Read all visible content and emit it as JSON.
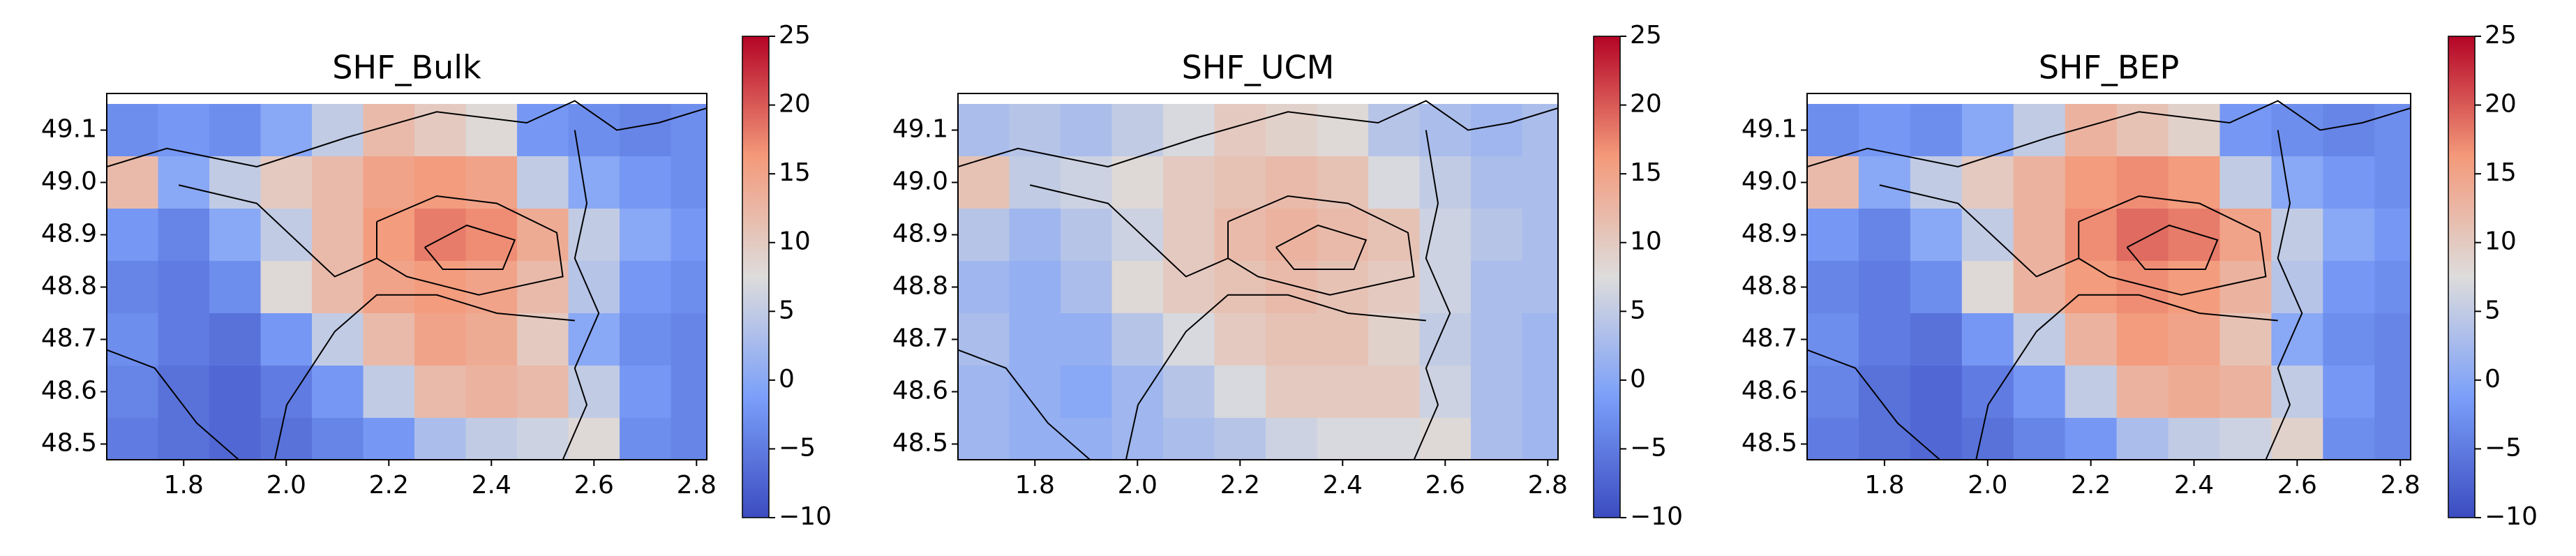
{
  "chart_data": [
    {
      "type": "heatmap",
      "title": "SHF_Bulk",
      "colormap": "coolwarm",
      "clim": [
        -10,
        25
      ],
      "cticks": [
        {
          "value": -10,
          "label": "−10"
        },
        {
          "value": -5,
          "label": "−5"
        },
        0,
        5,
        10,
        15,
        20,
        25
      ],
      "x": [
        1.7,
        1.8,
        1.9,
        2.0,
        2.1,
        2.2,
        2.3,
        2.4,
        2.5,
        2.6,
        2.7,
        2.8
      ],
      "y": [
        49.1,
        49.0,
        48.9,
        48.8,
        48.7,
        48.6,
        48.5
      ],
      "values": [
        [
          -3,
          -2,
          -3,
          0,
          5,
          12,
          10,
          8,
          -2,
          -3,
          -4,
          -3
        ],
        [
          12,
          0,
          5,
          10,
          12,
          15,
          16,
          15,
          5,
          0,
          -2,
          -3
        ],
        [
          -2,
          -4,
          0,
          5,
          12,
          16,
          18,
          17,
          14,
          5,
          0,
          -2
        ],
        [
          -4,
          -5,
          -3,
          8,
          12,
          15,
          16,
          15,
          12,
          4,
          -2,
          -3
        ],
        [
          -3,
          -5,
          -6,
          -2,
          5,
          12,
          15,
          14,
          10,
          0,
          -3,
          -4
        ],
        [
          -4,
          -6,
          -7,
          -5,
          -2,
          5,
          12,
          13,
          12,
          5,
          -2,
          -4
        ],
        [
          -5,
          -6,
          -7,
          -6,
          -4,
          -2,
          3,
          5,
          6,
          8,
          -3,
          -4
        ]
      ],
      "xlim": [
        1.65,
        2.82
      ],
      "ylim": [
        48.47,
        49.17
      ],
      "xticks": [
        1.8,
        {
          "value": 2,
          "label": "2.0"
        },
        2.2,
        2.4,
        2.6,
        2.8
      ],
      "yticks": [
        48.5,
        48.6,
        48.7,
        48.8,
        48.9,
        {
          "value": 49,
          "label": "49.0"
        },
        49.1
      ]
    },
    {
      "type": "heatmap",
      "title": "SHF_UCM",
      "colormap": "coolwarm",
      "clim": [
        -10,
        25
      ],
      "cticks": [
        {
          "value": -10,
          "label": "−10"
        },
        {
          "value": -5,
          "label": "−5"
        },
        0,
        5,
        10,
        15,
        20,
        25
      ],
      "x": [
        1.7,
        1.8,
        1.9,
        2.0,
        2.1,
        2.2,
        2.3,
        2.4,
        2.5,
        2.6,
        2.7,
        2.8
      ],
      "y": [
        49.1,
        49.0,
        48.9,
        48.8,
        48.7,
        48.6,
        48.5
      ],
      "values": [
        [
          3,
          4,
          3,
          5,
          7,
          10,
          9,
          8,
          4,
          3,
          2,
          3
        ],
        [
          11,
          5,
          6,
          8,
          10,
          11,
          12,
          11,
          7,
          5,
          3,
          3
        ],
        [
          4,
          2,
          4,
          6,
          10,
          12,
          13,
          12,
          11,
          6,
          4,
          3
        ],
        [
          2,
          1,
          3,
          8,
          10,
          11,
          12,
          11,
          10,
          6,
          3,
          3
        ],
        [
          3,
          1,
          1,
          4,
          7,
          10,
          11,
          11,
          9,
          5,
          3,
          2
        ],
        [
          2,
          1,
          0,
          2,
          4,
          7,
          10,
          10,
          10,
          6,
          3,
          2
        ],
        [
          2,
          1,
          1,
          2,
          3,
          4,
          6,
          7,
          7,
          8,
          3,
          2
        ]
      ],
      "xlim": [
        1.65,
        2.82
      ],
      "ylim": [
        48.47,
        49.17
      ],
      "xticks": [
        1.8,
        {
          "value": 2,
          "label": "2.0"
        },
        2.2,
        2.4,
        2.6,
        2.8
      ],
      "yticks": [
        48.5,
        48.6,
        48.7,
        48.8,
        48.9,
        {
          "value": 49,
          "label": "49.0"
        },
        49.1
      ]
    },
    {
      "type": "heatmap",
      "title": "SHF_BEP",
      "colormap": "coolwarm",
      "clim": [
        -10,
        25
      ],
      "cticks": [
        {
          "value": -10,
          "label": "−10"
        },
        {
          "value": -5,
          "label": "−5"
        },
        0,
        5,
        10,
        15,
        20,
        25
      ],
      "x": [
        1.7,
        1.8,
        1.9,
        2.0,
        2.1,
        2.2,
        2.3,
        2.4,
        2.5,
        2.6,
        2.7,
        2.8
      ],
      "y": [
        49.1,
        49.0,
        48.9,
        48.8,
        48.7,
        48.6,
        48.5
      ],
      "values": [
        [
          -3,
          -2,
          -3,
          0,
          5,
          13,
          11,
          9,
          -2,
          -3,
          -4,
          -3
        ],
        [
          12,
          0,
          5,
          10,
          13,
          16,
          17,
          16,
          5,
          0,
          -2,
          -3
        ],
        [
          -2,
          -4,
          0,
          5,
          13,
          17,
          19,
          18,
          15,
          5,
          0,
          -2
        ],
        [
          -4,
          -5,
          -3,
          8,
          13,
          16,
          17,
          16,
          13,
          4,
          -2,
          -3
        ],
        [
          -3,
          -5,
          -6,
          -2,
          5,
          13,
          16,
          15,
          11,
          0,
          -3,
          -4
        ],
        [
          -4,
          -6,
          -7,
          -5,
          -2,
          5,
          13,
          14,
          13,
          5,
          -2,
          -4
        ],
        [
          -5,
          -6,
          -7,
          -6,
          -4,
          -2,
          3,
          5,
          6,
          9,
          -3,
          -4
        ]
      ],
      "xlim": [
        1.65,
        2.82
      ],
      "ylim": [
        48.47,
        49.17
      ],
      "xticks": [
        1.8,
        {
          "value": 2,
          "label": "2.0"
        },
        2.2,
        2.4,
        2.6,
        2.8
      ],
      "yticks": [
        48.5,
        48.6,
        48.7,
        48.8,
        48.9,
        {
          "value": 49,
          "label": "49.0"
        },
        49.1
      ]
    }
  ]
}
